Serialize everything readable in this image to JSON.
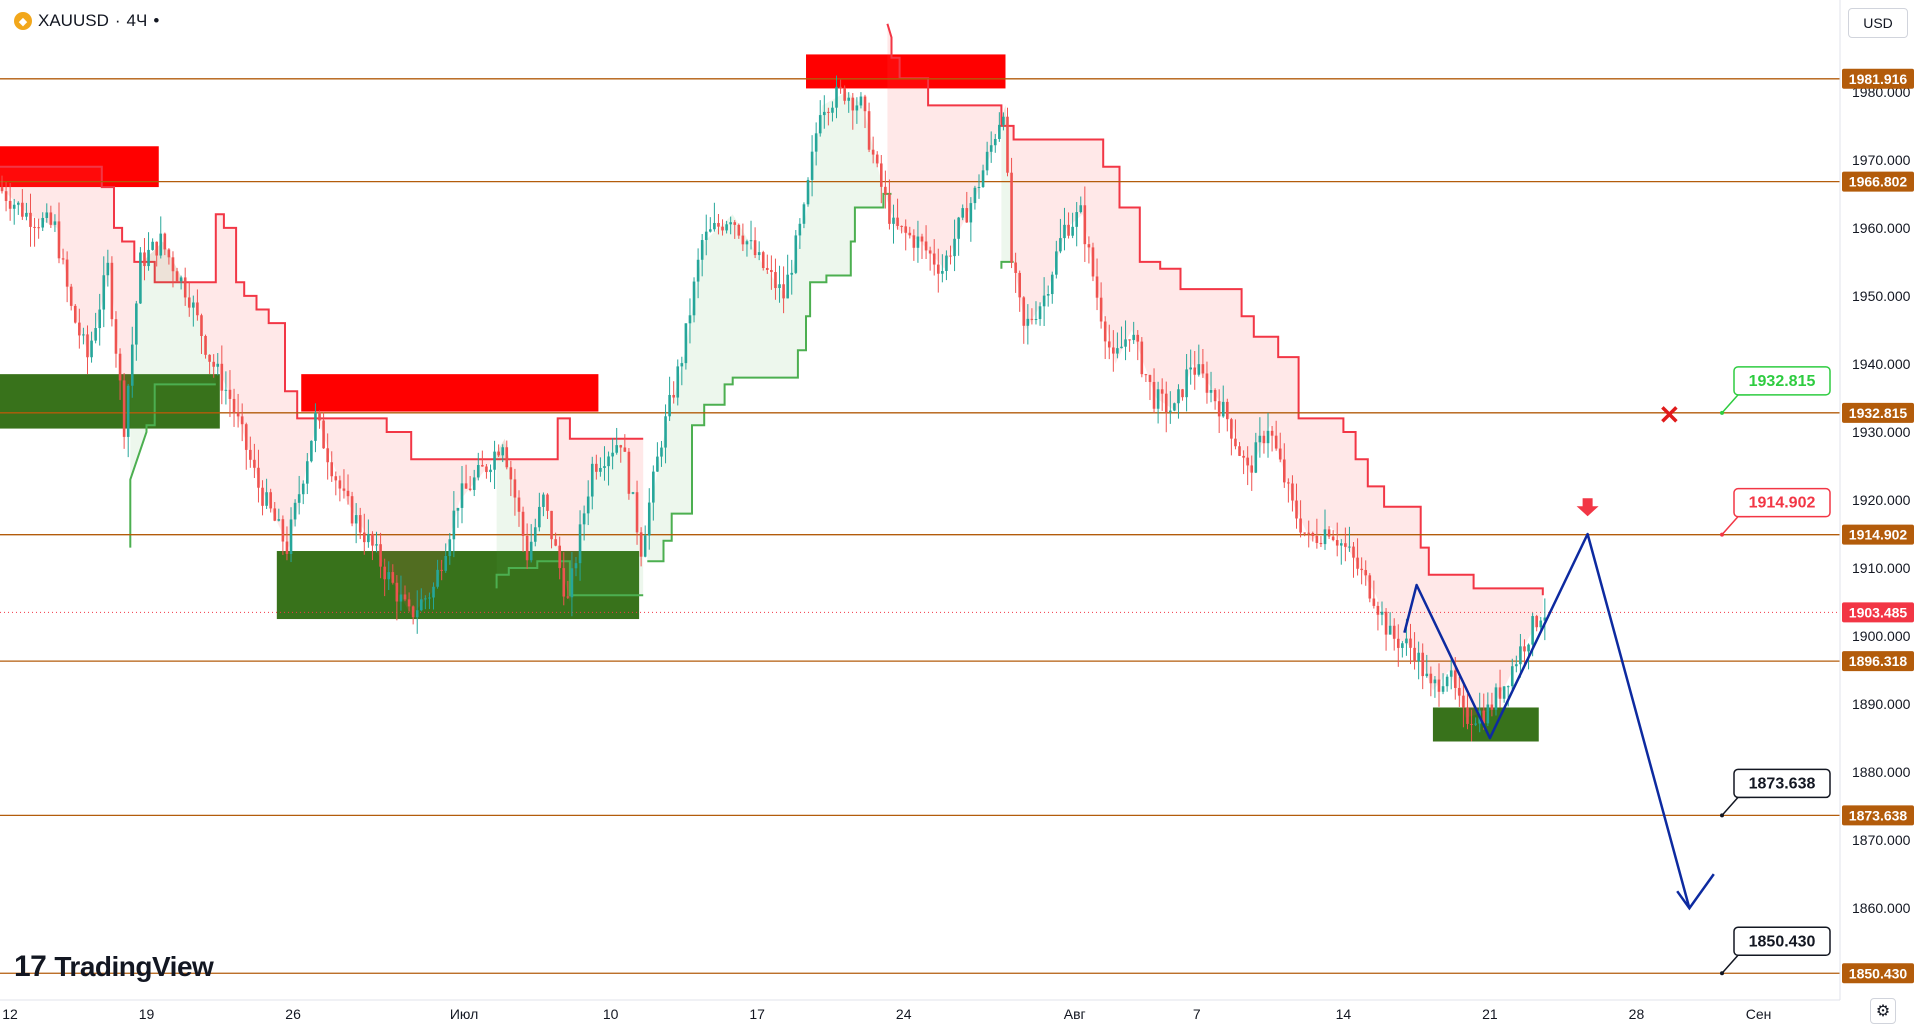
{
  "header": {
    "symbol": "XAUUSD",
    "separator": "·",
    "timeframe": "4Ч",
    "dot": "•"
  },
  "currency": "USD",
  "logo": {
    "text": "TradingView",
    "mark": "17"
  },
  "chart_data": {
    "type": "candlestick",
    "y_axis": {
      "min": 1846.5,
      "max": 1993.5,
      "ticks": [
        1980,
        1970,
        1960,
        1950,
        1940,
        1930,
        1920,
        1910,
        1900,
        1890,
        1880,
        1870,
        1860
      ],
      "tick_labels": [
        "1980.000",
        "1970.000",
        "1960.000",
        "1950.000",
        "1940.000",
        "1930.000",
        "1920.000",
        "1910.000",
        "1900.000",
        "1890.000",
        "1880.000",
        "1870.000",
        "1860.000"
      ]
    },
    "x_axis": {
      "labels": [
        "12",
        "19",
        "26",
        "Июл",
        "10",
        "17",
        "24",
        "Авг",
        "7",
        "14",
        "21",
        "28",
        "Сен"
      ],
      "label_units": [
        0,
        36,
        72,
        114,
        150,
        186,
        222,
        264,
        294,
        330,
        366,
        402,
        432
      ],
      "range": [
        0,
        452
      ]
    },
    "horizontal_levels": [
      {
        "value": 1981.916,
        "label": "1981.916"
      },
      {
        "value": 1966.802,
        "label": "1966.802"
      },
      {
        "value": 1932.815,
        "label": "1932.815"
      },
      {
        "value": 1914.902,
        "label": "1914.902"
      },
      {
        "value": 1896.318,
        "label": "1896.318"
      },
      {
        "value": 1873.638,
        "label": "1873.638"
      },
      {
        "value": 1850.43,
        "label": "1850.430"
      }
    ],
    "current_price": {
      "value": 1903.485,
      "label": "1903.485"
    },
    "callouts": [
      {
        "value": 1932.815,
        "label": "1932.815",
        "style": "green"
      },
      {
        "value": 1914.902,
        "label": "1914.902",
        "style": "red"
      },
      {
        "value": 1873.638,
        "label": "1873.638",
        "style": "black"
      },
      {
        "value": 1850.43,
        "label": "1850.430",
        "style": "black"
      }
    ],
    "zones": [
      {
        "kind": "supply",
        "x0": 0,
        "x1": 39,
        "y0": 1966.0,
        "y1": 1972.0
      },
      {
        "kind": "demand",
        "x0": 0,
        "x1": 54,
        "y0": 1930.5,
        "y1": 1938.5
      },
      {
        "kind": "supply",
        "x0": 74,
        "x1": 147,
        "y0": 1933.0,
        "y1": 1938.5
      },
      {
        "kind": "demand",
        "x0": 68,
        "x1": 157,
        "y0": 1902.5,
        "y1": 1912.5
      },
      {
        "kind": "supply",
        "x0": 198,
        "x1": 247,
        "y0": 1980.5,
        "y1": 1985.5
      },
      {
        "kind": "demand",
        "x0": 352,
        "x1": 378,
        "y0": 1884.5,
        "y1": 1889.5
      }
    ],
    "projection_path": [
      [
        345,
        1900.5
      ],
      [
        348,
        1907.5
      ],
      [
        366,
        1885.0
      ],
      [
        390,
        1915.0
      ],
      [
        415,
        1860.0
      ]
    ],
    "projection_arrowhead": [
      [
        412,
        1862.5
      ],
      [
        415,
        1860.0
      ],
      [
        421,
        1865.0
      ]
    ],
    "sell_marker": {
      "x": 390,
      "y": 1918.5
    },
    "cancel_marker": {
      "x": 415,
      "y": 1932.0
    },
    "supertrend": [
      {
        "dir": "down",
        "points": [
          [
            0,
            1969
          ],
          [
            25,
            1969
          ],
          [
            25,
            1966
          ],
          [
            28,
            1966
          ],
          [
            28,
            1960
          ],
          [
            30,
            1960
          ],
          [
            30,
            1958
          ],
          [
            33,
            1958
          ],
          [
            33,
            1955
          ],
          [
            38,
            1955
          ],
          [
            38,
            1952
          ],
          [
            53,
            1952
          ],
          [
            53,
            1962
          ],
          [
            55,
            1962
          ],
          [
            55,
            1960
          ],
          [
            58,
            1960
          ],
          [
            58,
            1952
          ],
          [
            60,
            1952
          ],
          [
            60,
            1950
          ],
          [
            63,
            1950
          ],
          [
            63,
            1948
          ],
          [
            66,
            1948
          ],
          [
            66,
            1946
          ],
          [
            70,
            1946
          ],
          [
            70,
            1936
          ],
          [
            73,
            1936
          ],
          [
            73,
            1932
          ],
          [
            95,
            1932
          ],
          [
            95,
            1930
          ],
          [
            101,
            1930
          ],
          [
            101,
            1926
          ],
          [
            137,
            1926
          ],
          [
            137,
            1932
          ],
          [
            140,
            1932
          ],
          [
            140,
            1929
          ],
          [
            158,
            1929
          ]
        ]
      },
      {
        "dir": "up",
        "points": [
          [
            32,
            1913
          ],
          [
            32,
            1923
          ],
          [
            36,
            1930
          ],
          [
            36,
            1931
          ],
          [
            38,
            1931
          ],
          [
            38,
            1937
          ],
          [
            53,
            1937
          ]
        ]
      },
      {
        "dir": "up",
        "points": [
          [
            122,
            1907
          ],
          [
            122,
            1909
          ],
          [
            125,
            1909
          ],
          [
            125,
            1910
          ],
          [
            132,
            1910
          ],
          [
            132,
            1911
          ],
          [
            140,
            1911
          ],
          [
            140,
            1906
          ],
          [
            158,
            1906
          ]
        ]
      },
      {
        "dir": "up",
        "points": [
          [
            159,
            1911
          ],
          [
            163,
            1911
          ],
          [
            163,
            1914
          ],
          [
            165,
            1914
          ],
          [
            165,
            1918
          ],
          [
            170,
            1918
          ],
          [
            170,
            1931
          ],
          [
            173,
            1931
          ],
          [
            173,
            1934
          ],
          [
            178,
            1934
          ],
          [
            178,
            1937
          ],
          [
            180,
            1937
          ],
          [
            180,
            1938
          ],
          [
            196,
            1938
          ],
          [
            196,
            1942
          ],
          [
            198,
            1942
          ],
          [
            198,
            1947
          ],
          [
            199,
            1947
          ],
          [
            199,
            1952
          ],
          [
            203,
            1952
          ],
          [
            203,
            1953
          ],
          [
            209,
            1953
          ],
          [
            209,
            1958
          ],
          [
            210,
            1958
          ],
          [
            210,
            1963
          ],
          [
            217,
            1963
          ],
          [
            217,
            1965
          ],
          [
            219,
            1965
          ]
        ]
      },
      {
        "dir": "down",
        "points": [
          [
            218,
            1990
          ],
          [
            219,
            1988
          ],
          [
            219,
            1985
          ],
          [
            221,
            1985
          ],
          [
            221,
            1982
          ],
          [
            228,
            1982
          ],
          [
            228,
            1978
          ],
          [
            246,
            1978
          ],
          [
            246,
            1975
          ],
          [
            249,
            1975
          ],
          [
            249,
            1973
          ],
          [
            255,
            1973
          ],
          [
            255,
            1973
          ],
          [
            271,
            1973
          ],
          [
            271,
            1969
          ],
          [
            275,
            1969
          ],
          [
            275,
            1963
          ],
          [
            280,
            1963
          ],
          [
            280,
            1955
          ],
          [
            285,
            1955
          ],
          [
            285,
            1954
          ],
          [
            290,
            1954
          ],
          [
            290,
            1951
          ],
          [
            305,
            1951
          ],
          [
            305,
            1947
          ],
          [
            308,
            1947
          ],
          [
            308,
            1944
          ],
          [
            314,
            1944
          ],
          [
            314,
            1941
          ],
          [
            319,
            1941
          ],
          [
            319,
            1932
          ],
          [
            330,
            1932
          ],
          [
            330,
            1930
          ],
          [
            333,
            1930
          ],
          [
            333,
            1926
          ],
          [
            336,
            1926
          ],
          [
            336,
            1922
          ],
          [
            340,
            1922
          ],
          [
            340,
            1919
          ],
          [
            349,
            1919
          ],
          [
            349,
            1913
          ],
          [
            351,
            1913
          ],
          [
            351,
            1909
          ],
          [
            362,
            1909
          ],
          [
            362,
            1907
          ],
          [
            379,
            1907
          ],
          [
            379,
            1906
          ]
        ]
      },
      {
        "dir": "up",
        "points": [
          [
            246,
            1954
          ],
          [
            246,
            1955
          ],
          [
            249,
            1955
          ]
        ]
      }
    ],
    "candles_note": "Approximate OHLC path over 379 4h bars",
    "candles_seed": 7,
    "price_path": [
      [
        0,
        1966
      ],
      [
        7,
        1962
      ],
      [
        14,
        1960
      ],
      [
        18,
        1948
      ],
      [
        22,
        1941
      ],
      [
        27,
        1954
      ],
      [
        31,
        1931
      ],
      [
        35,
        1955
      ],
      [
        40,
        1958
      ],
      [
        47,
        1950
      ],
      [
        52,
        1941
      ],
      [
        57,
        1935
      ],
      [
        64,
        1922
      ],
      [
        71,
        1913
      ],
      [
        78,
        1932
      ],
      [
        85,
        1920
      ],
      [
        92,
        1913
      ],
      [
        101,
        1903
      ],
      [
        107,
        1907
      ],
      [
        113,
        1920
      ],
      [
        120,
        1925
      ],
      [
        124,
        1929
      ],
      [
        130,
        1912
      ],
      [
        134,
        1920
      ],
      [
        140,
        1905
      ],
      [
        146,
        1925
      ],
      [
        153,
        1929
      ],
      [
        158,
        1913
      ],
      [
        163,
        1929
      ],
      [
        168,
        1941
      ],
      [
        173,
        1958
      ],
      [
        180,
        1962
      ],
      [
        187,
        1955
      ],
      [
        193,
        1950
      ],
      [
        198,
        1962
      ],
      [
        202,
        1978
      ],
      [
        208,
        1980
      ],
      [
        212,
        1978
      ],
      [
        216,
        1968
      ],
      [
        220,
        1960
      ],
      [
        226,
        1958
      ],
      [
        232,
        1954
      ],
      [
        236,
        1960
      ],
      [
        240,
        1965
      ],
      [
        244,
        1972
      ],
      [
        247,
        1978
      ],
      [
        249,
        1955
      ],
      [
        252,
        1945
      ],
      [
        257,
        1950
      ],
      [
        262,
        1960
      ],
      [
        266,
        1962
      ],
      [
        270,
        1950
      ],
      [
        274,
        1940
      ],
      [
        278,
        1945
      ],
      [
        284,
        1935
      ],
      [
        289,
        1933
      ],
      [
        293,
        1940
      ],
      [
        297,
        1937
      ],
      [
        302,
        1932
      ],
      [
        307,
        1924
      ],
      [
        312,
        1931
      ],
      [
        318,
        1919
      ],
      [
        322,
        1914
      ],
      [
        327,
        1916
      ],
      [
        332,
        1912
      ],
      [
        338,
        1906
      ],
      [
        342,
        1900
      ],
      [
        348,
        1898
      ],
      [
        352,
        1892
      ],
      [
        356,
        1895
      ],
      [
        360,
        1888
      ],
      [
        366,
        1889
      ],
      [
        370,
        1893
      ],
      [
        374,
        1898
      ],
      [
        379,
        1903.5
      ]
    ]
  }
}
